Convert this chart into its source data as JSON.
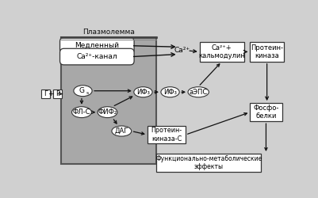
{
  "bg_color": "#d0d0d0",
  "cell_fc": "#aaaaaa",
  "white": "#ffffff",
  "label_plazmolemma": "Плазмолемма",
  "label_medlennyy": "Медленный",
  "label_ca_kanal": "Са²⁺-канал",
  "label_ca": "Са²⁺",
  "label_ca_kalmodulin": "Са²⁺+\nкальмодулин",
  "label_protein_kinaza": "Протеин-\nкиназа",
  "label_g": "G",
  "label_gs": "s",
  "label_fl_c": "ФЛ-С",
  "label_fif": "ФИФ₂",
  "label_if3_1": "ИФ₃",
  "label_if3_2": "ИФ₃",
  "label_aeps": "аЭПС",
  "label_dag": "ДАГ",
  "label_protkinc": "Протеин-\nкиназа-С",
  "label_fosfbelki": "Фосфо-\nбелки",
  "label_func": "Функционально-метаболические\nэффекты",
  "label_g_box": "Г",
  "label_r_box": "Р",
  "label_plus": "+",
  "ec": "#333333",
  "arrow_color": "#111111"
}
